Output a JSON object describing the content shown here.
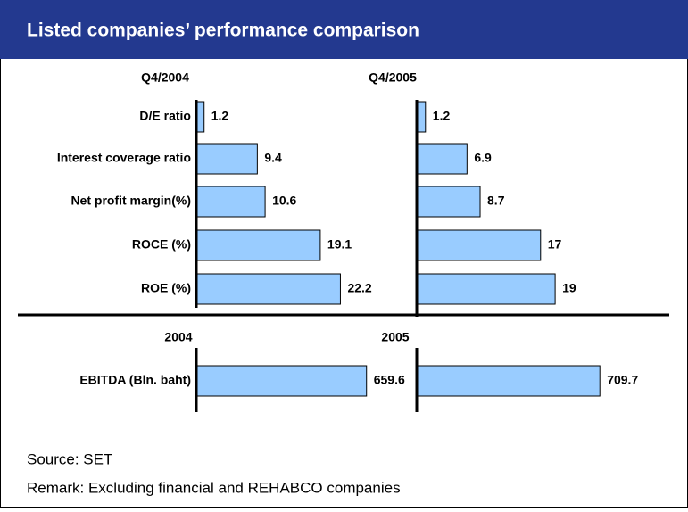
{
  "header": {
    "title": "Listed companies’ performance comparison"
  },
  "chart_data": [
    {
      "type": "bar",
      "orientation": "horizontal",
      "title": "Q4/2004",
      "categories": [
        "D/E ratio",
        "Interest coverage ratio",
        "Net profit margin(%)",
        "ROCE (%)",
        "ROE (%)"
      ],
      "values": [
        1.2,
        9.4,
        10.6,
        19.1,
        22.2
      ],
      "xlim": [
        0,
        33
      ],
      "color": "#99ccff"
    },
    {
      "type": "bar",
      "orientation": "horizontal",
      "title": "Q4/2005",
      "values": [
        1.2,
        6.9,
        8.7,
        17,
        19
      ],
      "xlim": [
        0,
        29.4
      ],
      "color": "#99ccff"
    },
    {
      "type": "bar",
      "orientation": "horizontal",
      "title": "2004",
      "categories": [
        "EBITDA (Bln. baht)"
      ],
      "values": [
        659.6
      ],
      "xlim": [
        0,
        830
      ],
      "color": "#99ccff"
    },
    {
      "type": "bar",
      "orientation": "horizontal",
      "title": "2005",
      "values": [
        709.7
      ],
      "xlim": [
        0,
        830
      ],
      "color": "#99ccff"
    }
  ],
  "footer": {
    "source": "Source: SET",
    "remark": "Remark: Excluding financial and REHABCO companies"
  }
}
